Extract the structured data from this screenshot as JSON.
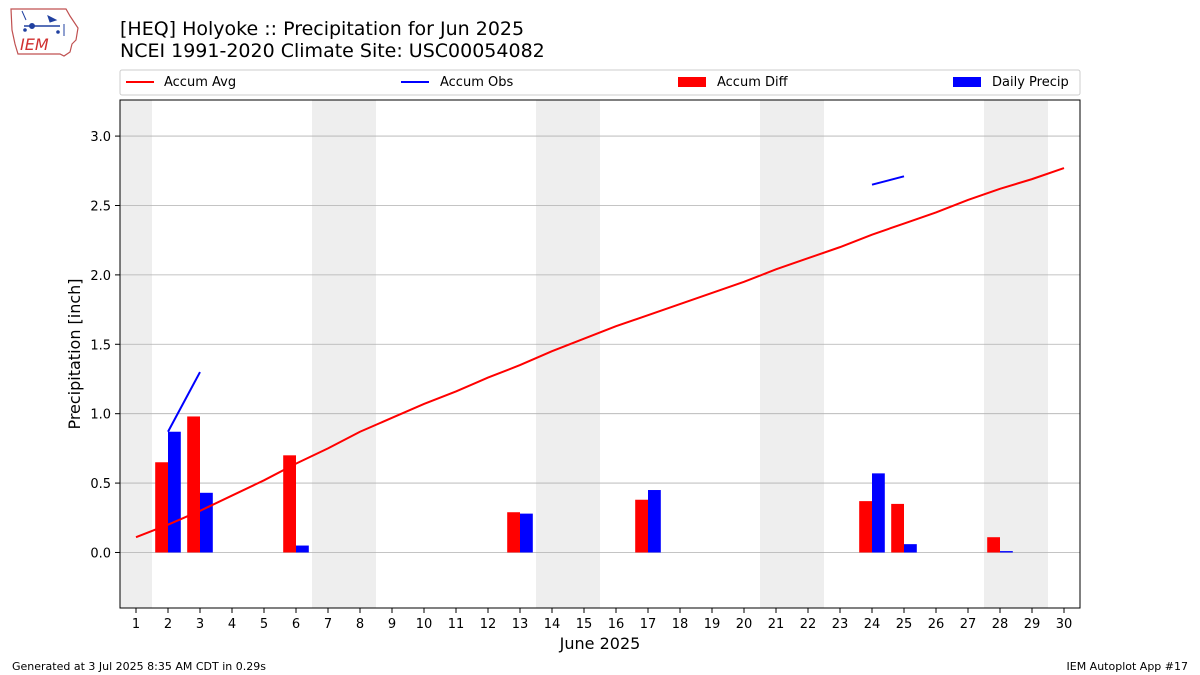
{
  "header": {
    "title_line1": "[HEQ] Holyoke :: Precipitation for Jun 2025",
    "title_line2": "NCEI 1991-2020 Climate Site: USC00054082",
    "logo_text": "IEM"
  },
  "footer": {
    "generated": "Generated at 3 Jul 2025 8:35 AM CDT in 0.29s",
    "app": "IEM Autoplot App #17"
  },
  "colors": {
    "accum_avg": "#ff0000",
    "accum_obs": "#0000ff",
    "accum_diff": "#ff0000",
    "daily_precip": "#0000ff",
    "weekend_shade": "#eeeeee",
    "grid": "#b0b0b0"
  },
  "chart_data": {
    "type": "bar",
    "xlabel": "June 2025",
    "ylabel": "Precipitation [inch]",
    "ylim": [
      -0.4,
      3.26
    ],
    "xlim": [
      0.5,
      30.5
    ],
    "yticks": [
      0.0,
      0.5,
      1.0,
      1.5,
      2.0,
      2.5,
      3.0
    ],
    "ytick_labels": [
      "0.0",
      "0.5",
      "1.0",
      "1.5",
      "2.0",
      "2.5",
      "3.0"
    ],
    "x": [
      1,
      2,
      3,
      4,
      5,
      6,
      7,
      8,
      9,
      10,
      11,
      12,
      13,
      14,
      15,
      16,
      17,
      18,
      19,
      20,
      21,
      22,
      23,
      24,
      25,
      26,
      27,
      28,
      29,
      30
    ],
    "weekend_days": [
      1,
      7,
      8,
      14,
      15,
      21,
      22,
      28,
      29
    ],
    "grid": "horizontal",
    "legend": {
      "placement": "top",
      "entries": [
        {
          "label": "Accum Avg",
          "kind": "line",
          "color": "#ff0000"
        },
        {
          "label": "Accum Obs",
          "kind": "line",
          "color": "#0000ff"
        },
        {
          "label": "Accum Diff",
          "kind": "bar",
          "color": "#ff0000"
        },
        {
          "label": "Daily Precip",
          "kind": "bar",
          "color": "#0000ff"
        }
      ]
    },
    "series": [
      {
        "name": "Accum Avg",
        "type": "line",
        "values": [
          0.11,
          0.2,
          0.3,
          0.41,
          0.52,
          0.64,
          0.75,
          0.87,
          0.97,
          1.07,
          1.16,
          1.26,
          1.35,
          1.45,
          1.54,
          1.63,
          1.71,
          1.79,
          1.87,
          1.95,
          2.04,
          2.12,
          2.2,
          2.29,
          2.37,
          2.45,
          2.54,
          2.62,
          2.69,
          2.77
        ]
      },
      {
        "name": "Accum Obs",
        "type": "line",
        "segments": [
          {
            "x": [
              2,
              3
            ],
            "y": [
              0.87,
              1.3
            ]
          },
          {
            "x": [
              24,
              25
            ],
            "y": [
              2.65,
              2.71
            ]
          }
        ]
      },
      {
        "name": "Accum Diff",
        "type": "bar",
        "points": [
          {
            "x": 2,
            "y": 0.65
          },
          {
            "x": 3,
            "y": 0.98
          },
          {
            "x": 6,
            "y": 0.7
          },
          {
            "x": 13,
            "y": 0.29
          },
          {
            "x": 17,
            "y": 0.38
          },
          {
            "x": 24,
            "y": 0.37
          },
          {
            "x": 25,
            "y": 0.35
          },
          {
            "x": 28,
            "y": 0.11
          }
        ]
      },
      {
        "name": "Daily Precip",
        "type": "bar",
        "points": [
          {
            "x": 2,
            "y": 0.87
          },
          {
            "x": 3,
            "y": 0.43
          },
          {
            "x": 6,
            "y": 0.05
          },
          {
            "x": 13,
            "y": 0.28
          },
          {
            "x": 17,
            "y": 0.45
          },
          {
            "x": 24,
            "y": 0.57
          },
          {
            "x": 25,
            "y": 0.06
          },
          {
            "x": 28,
            "y": 0.01
          }
        ]
      }
    ]
  }
}
